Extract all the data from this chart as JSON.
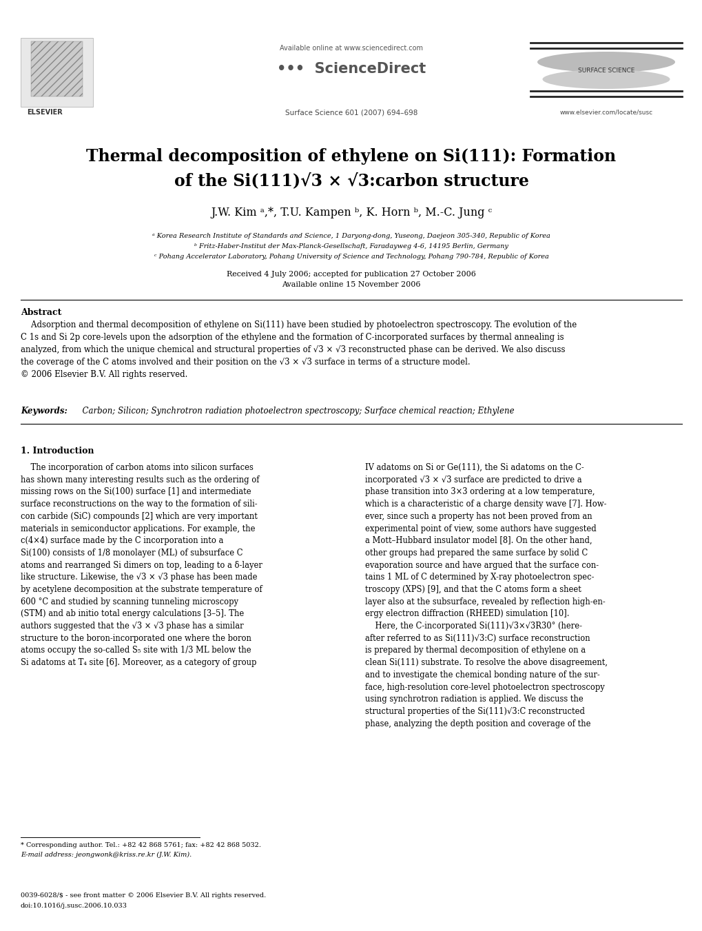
{
  "bg_color": "#ffffff",
  "page_width": 10.2,
  "page_height": 13.51,
  "dpi": 100,
  "header": {
    "available_online": "Available online at www.sciencedirect.com",
    "journal": "Surface Science 601 (2007) 694–698",
    "website": "www.elsevier.com/locate/susc",
    "elsevier_label": "ELSEVIER",
    "surface_science_label": "SURFACE SCIENCE"
  },
  "title_line1": "Thermal decomposition of ethylene on Si(111): Formation",
  "title_line2": "of the Si(111)√3 × √3:carbon structure",
  "affil_a": "ᵃ Korea Research Institute of Standards and Science, 1 Daryong-dong, Yuseong, Daejeon 305-340, Republic of Korea",
  "affil_b": "ᵇ Fritz-Haber-Institut der Max-Planck-Gesellschaft, Faradayweg 4-6, 14195 Berlin, Germany",
  "affil_c": "ᶜ Pohang Accelerator Laboratory, Pohang University of Science and Technology, Pohang 790-784, Republic of Korea",
  "received": "Received 4 July 2006; accepted for publication 27 October 2006",
  "available": "Available online 15 November 2006",
  "abstract_title": "Abstract",
  "keywords_label": "Keywords:",
  "keywords_text": "  Carbon; Silicon; Synchrotron radiation photoelectron spectroscopy; Surface chemical reaction; Ethylene",
  "section1_title": "1. Introduction",
  "footnote_star": "* Corresponding author. Tel.: +82 42 868 5761; fax: +82 42 868 5032.",
  "footnote_email": "E-mail address: jeongwonk@kriss.re.kr (J.W. Kim).",
  "footnote_issn": "0039-6028/$ - see front matter © 2006 Elsevier B.V. All rights reserved.",
  "footnote_doi": "doi:10.1016/j.susc.2006.10.033"
}
